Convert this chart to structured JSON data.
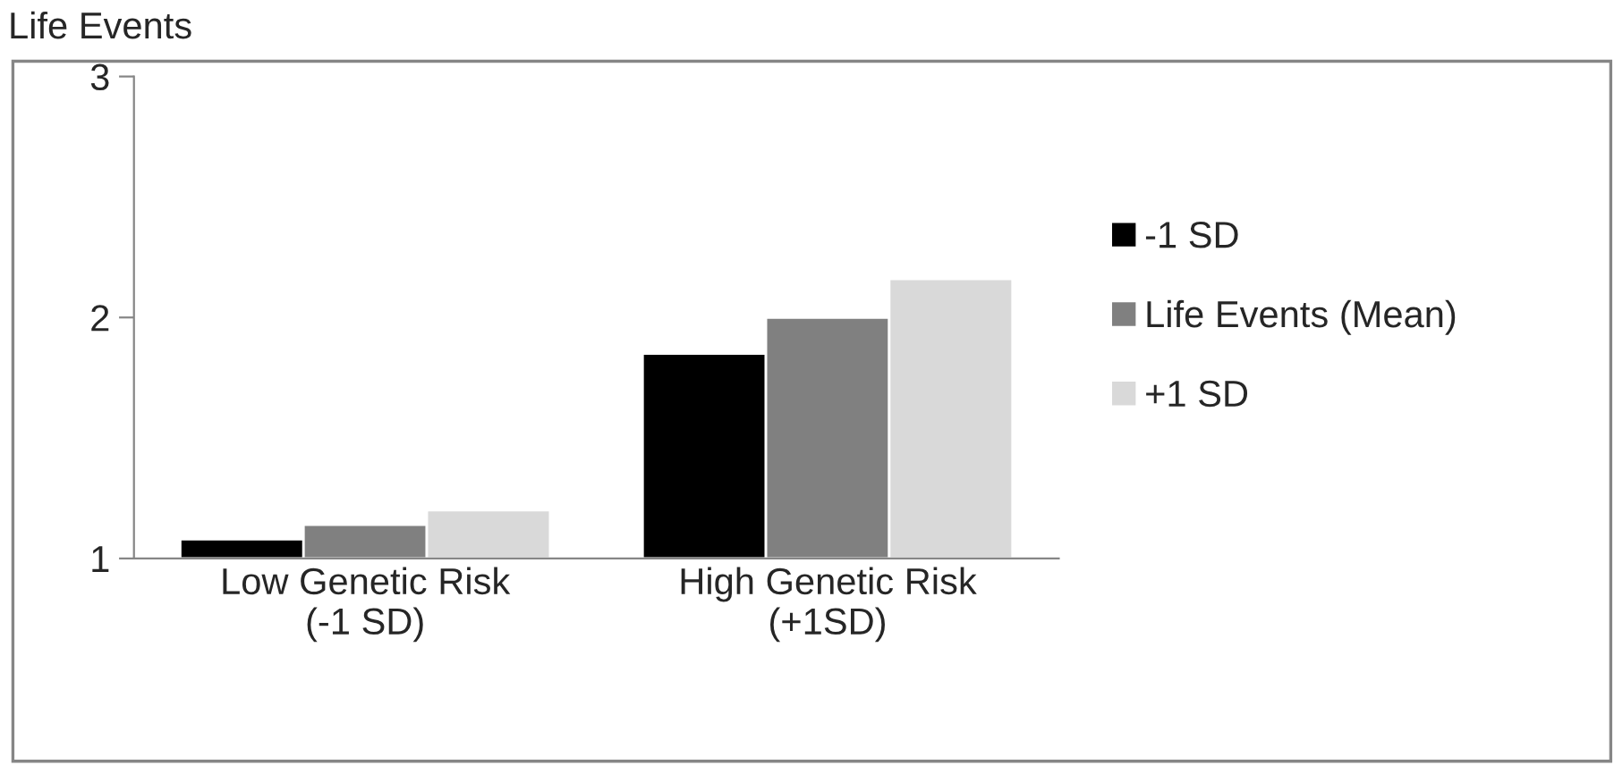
{
  "chart_data": {
    "type": "bar",
    "title": "Life Events",
    "categories": [
      "Low Genetic Risk\n(-1 SD)",
      "High Genetic Risk\n(+1SD)"
    ],
    "series": [
      {
        "name": "-1 SD",
        "color": "#000000",
        "values": [
          1.08,
          1.85
        ]
      },
      {
        "name": "Life Events (Mean)",
        "color": "#808080",
        "values": [
          1.14,
          2.0
        ]
      },
      {
        "name": "+1 SD",
        "color": "#d9d9d9",
        "values": [
          1.2,
          2.16
        ]
      }
    ],
    "ylim": [
      1,
      3
    ],
    "yticks": [
      1,
      2,
      3
    ],
    "grid": false,
    "legend": "right"
  }
}
